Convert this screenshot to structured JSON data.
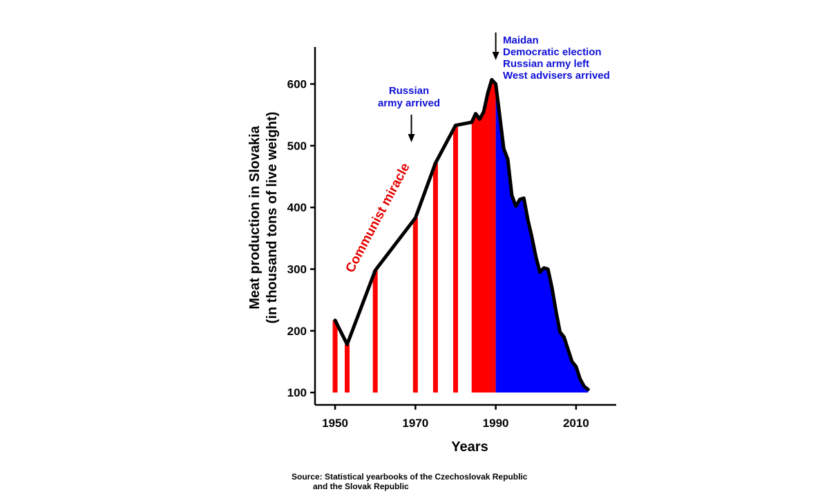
{
  "chart_data": {
    "type": "area",
    "xlabel": "Years",
    "ylabel_lines": [
      "Meat production in Slovakia",
      "(in thousand tons of live weight)"
    ],
    "xlim": [
      1945,
      2020
    ],
    "ylim": [
      80,
      660
    ],
    "x_ticks": [
      1950,
      1970,
      1990,
      2010
    ],
    "y_ticks": [
      100,
      200,
      300,
      400,
      500,
      600
    ],
    "grid": false,
    "legend": "none",
    "series": [
      {
        "x": [
          1950,
          1953,
          1960,
          1970,
          1975,
          1980,
          1984,
          1985,
          1986,
          1987,
          1988,
          1989,
          1990,
          1991,
          1992,
          1993,
          1994,
          1995,
          1996,
          1997,
          1998,
          1999,
          2000,
          2001,
          2002,
          2003,
          2004,
          2005,
          2006,
          2007,
          2008,
          2009,
          2010,
          2011,
          2012,
          2013
        ],
        "y": [
          217,
          178,
          298,
          383,
          472,
          533,
          538,
          552,
          543,
          555,
          585,
          607,
          600,
          548,
          495,
          478,
          420,
          402,
          413,
          415,
          380,
          352,
          320,
          295,
          302,
          300,
          270,
          232,
          198,
          190,
          170,
          150,
          142,
          122,
          110,
          105
        ]
      }
    ],
    "fills": {
      "communist_bars_x": [
        1950,
        1953,
        1960,
        1970,
        1975,
        1980
      ],
      "communist_solid_from": 1984,
      "split_year": 1990,
      "communist_color": "#ff0000",
      "post_color": "#0000ff",
      "line_color": "#000000"
    },
    "annotations": [
      {
        "lines": [
          "Russian",
          "army arrived"
        ],
        "color": "#1010d8",
        "arrow_x": 1969
      },
      {
        "lines": [
          "Maidan",
          "Democratic election",
          "Russian army left",
          "West advisers arrived"
        ],
        "color": "#1010d8",
        "arrow_x": 1990
      },
      {
        "lines": [
          "Communist miracle"
        ],
        "color": "#e60000"
      }
    ],
    "source_lines": [
      "Source: Statistical yearbooks of the Czechoslovak Republic",
      "and the Slovak Republic"
    ]
  }
}
